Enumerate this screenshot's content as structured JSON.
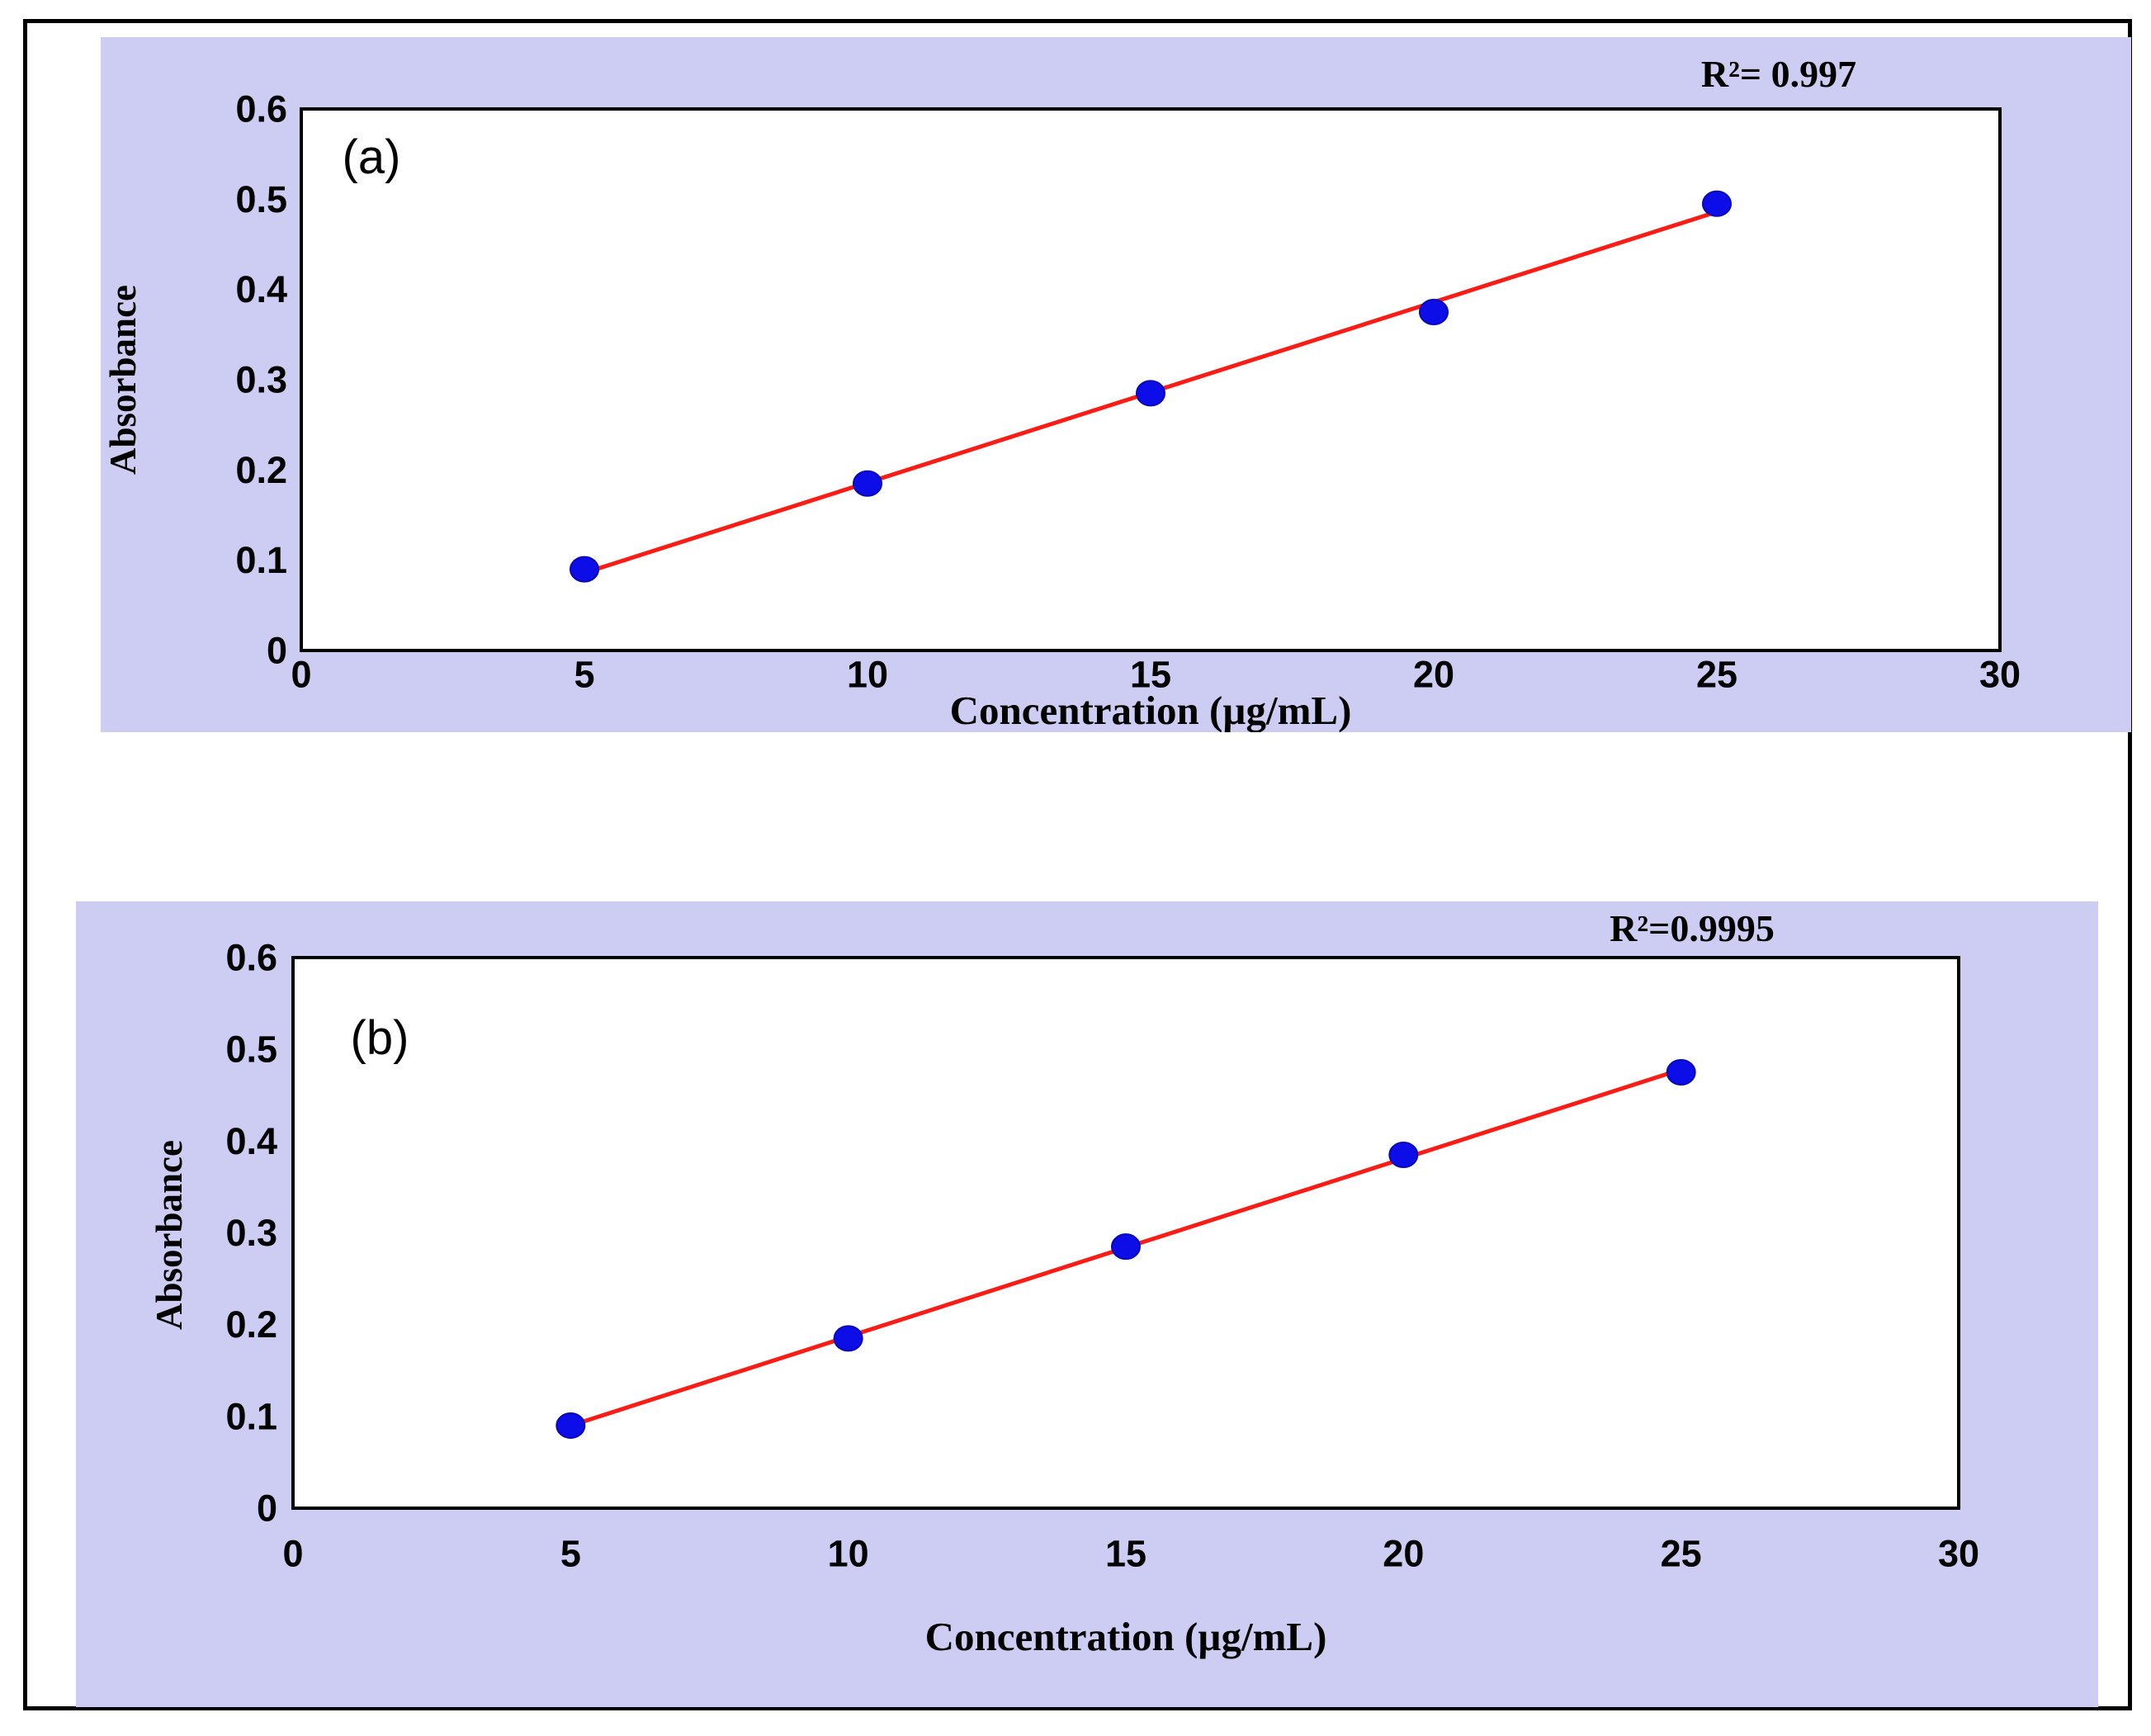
{
  "colors": {
    "page_bg": "#ffffff",
    "frame_border": "#000000",
    "panel_bg": "#cdcdf3",
    "plot_bg": "#ffffff",
    "plot_border": "#000000",
    "marker_fill": "#0d0de8",
    "marker_edge": "#0808b8",
    "trend_line": "#fb1d15",
    "text": "#000000"
  },
  "chart_data": [
    {
      "type": "scatter",
      "panel_label": "(a)",
      "r_squared_label": "R²= 0.997",
      "xlabel": "Concentration (µg/mL)",
      "ylabel": "Absorbance",
      "x": [
        5,
        10,
        15,
        20,
        25
      ],
      "y": [
        0.09,
        0.185,
        0.285,
        0.375,
        0.495
      ],
      "fit_line": {
        "x1": 5,
        "y1": 0.086,
        "x2": 25,
        "y2": 0.486,
        "slope": 0.02,
        "intercept": -0.014
      },
      "xlim": [
        0,
        30
      ],
      "ylim": [
        0,
        0.6
      ],
      "xticks": [
        0,
        5,
        10,
        15,
        20,
        25,
        30
      ],
      "yticks": [
        0,
        0.1,
        0.2,
        0.3,
        0.4,
        0.5,
        0.6
      ],
      "grid": false,
      "legend": "none"
    },
    {
      "type": "scatter",
      "panel_label": "(b)",
      "r_squared_label": "R²=0.9995",
      "xlabel": "Concentration (µg/mL)",
      "ylabel": "Absorbance",
      "x": [
        5,
        10,
        15,
        20,
        25
      ],
      "y": [
        0.09,
        0.185,
        0.285,
        0.385,
        0.475
      ],
      "fit_line": {
        "x1": 5,
        "y1": 0.09,
        "x2": 25,
        "y2": 0.478,
        "slope": 0.0194,
        "intercept": -0.007
      },
      "xlim": [
        0,
        30
      ],
      "ylim": [
        0,
        0.6
      ],
      "xticks": [
        0,
        5,
        10,
        15,
        20,
        25,
        30
      ],
      "yticks": [
        0,
        0.1,
        0.2,
        0.3,
        0.4,
        0.5,
        0.6
      ],
      "grid": false,
      "legend": "none"
    }
  ]
}
